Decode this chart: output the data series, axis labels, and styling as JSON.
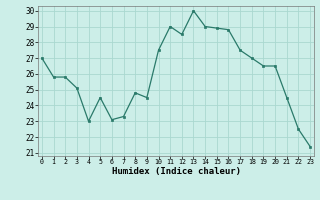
{
  "x": [
    0,
    1,
    2,
    3,
    4,
    5,
    6,
    7,
    8,
    9,
    10,
    11,
    12,
    13,
    14,
    15,
    16,
    17,
    18,
    19,
    20,
    21,
    22,
    23
  ],
  "y": [
    27,
    25.8,
    25.8,
    25.1,
    23,
    24.5,
    23.1,
    23.3,
    24.8,
    24.5,
    27.5,
    29,
    28.5,
    30,
    29,
    28.9,
    28.8,
    27.5,
    27,
    26.5,
    26.5,
    24.5,
    22.5,
    21.4
  ],
  "xlabel": "Humidex (Indice chaleur)",
  "line_color": "#2a7a6a",
  "marker_color": "#2a7a6a",
  "bg_color": "#cceee8",
  "grid_color": "#aad8d0",
  "ylim": [
    21,
    30
  ],
  "xlim": [
    -0.3,
    23.3
  ],
  "yticks": [
    21,
    22,
    23,
    24,
    25,
    26,
    27,
    28,
    29,
    30
  ],
  "xticks": [
    0,
    1,
    2,
    3,
    4,
    5,
    6,
    7,
    8,
    9,
    10,
    11,
    12,
    13,
    14,
    15,
    16,
    17,
    18,
    19,
    20,
    21,
    22,
    23
  ]
}
